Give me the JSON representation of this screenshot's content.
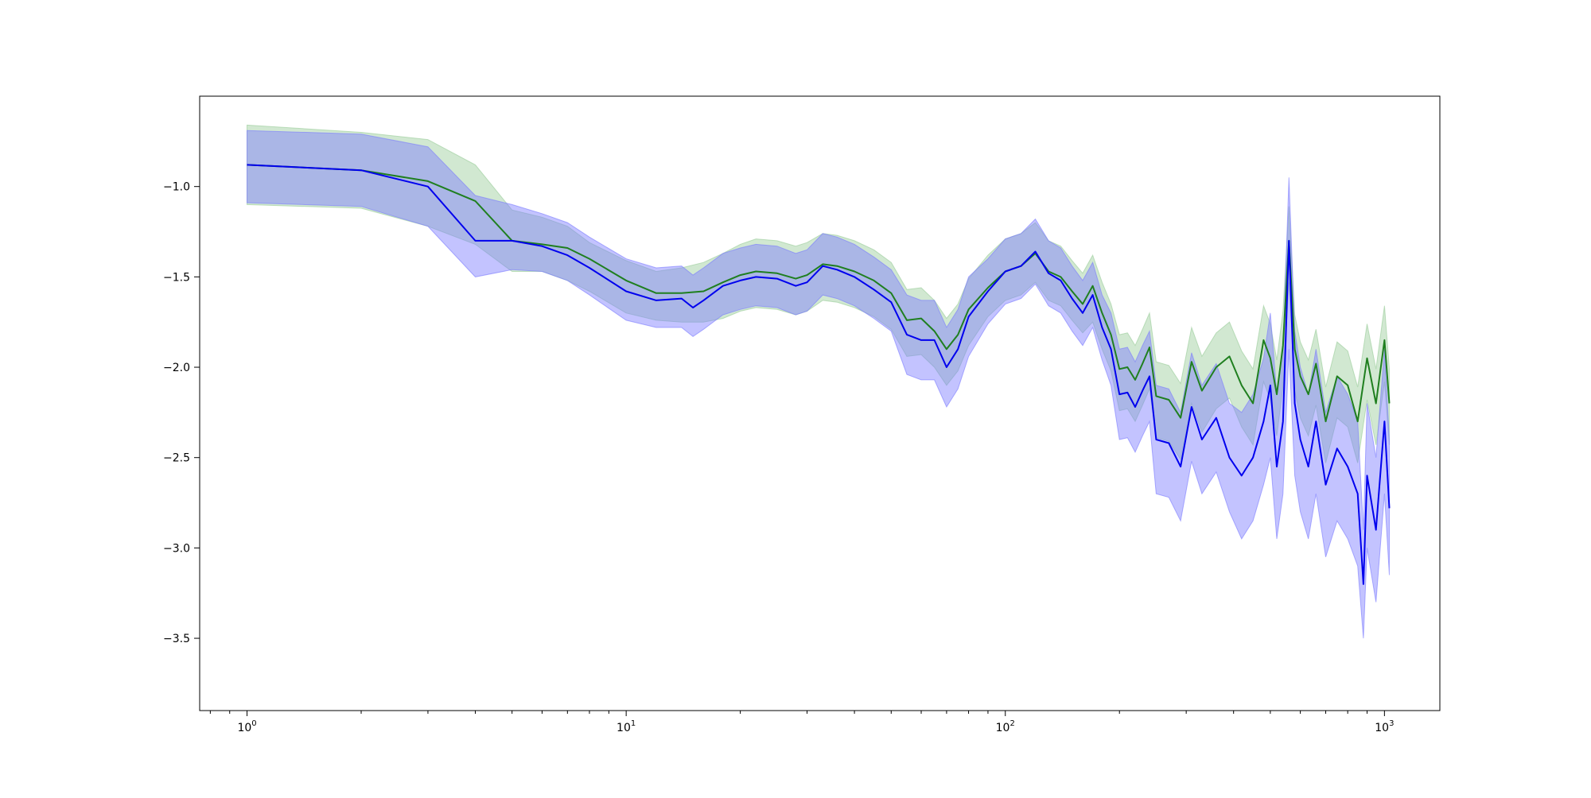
{
  "colors": {
    "green_line": "#1f7f1f",
    "green_band": "#98cc98",
    "blue_line": "#0000ee",
    "blue_band": "#7a7aff",
    "frame": "#000000"
  },
  "chart_data": {
    "type": "line",
    "title": "",
    "xlabel": "",
    "ylabel": "",
    "x_scale": "log",
    "xlim": [
      0.75,
      1400
    ],
    "ylim": [
      -3.9,
      -0.5
    ],
    "grid": false,
    "legend": "none",
    "x_ticks": [
      {
        "value": 1,
        "base": "10",
        "exp": "0"
      },
      {
        "value": 10,
        "base": "10",
        "exp": "1"
      },
      {
        "value": 100,
        "base": "10",
        "exp": "2"
      },
      {
        "value": 1000,
        "base": "10",
        "exp": "3"
      }
    ],
    "y_ticks": [
      {
        "value": -1.0,
        "label": "−1.0"
      },
      {
        "value": -1.5,
        "label": "−1.5"
      },
      {
        "value": -2.0,
        "label": "−2.0"
      },
      {
        "value": -2.5,
        "label": "−2.5"
      },
      {
        "value": -3.0,
        "label": "−3.0"
      },
      {
        "value": -3.5,
        "label": "−3.5"
      }
    ],
    "series": [
      {
        "color": "#1f7f1f",
        "band_color": "#98cc98",
        "x": [
          1,
          2,
          3,
          4,
          5,
          6,
          7,
          8,
          10,
          12,
          14,
          16,
          18,
          20,
          22,
          25,
          28,
          30,
          33,
          36,
          40,
          45,
          50,
          55,
          60,
          65,
          70,
          75,
          80,
          90,
          100,
          110,
          120,
          130,
          140,
          150,
          160,
          170,
          180,
          190,
          200,
          210,
          220,
          230,
          240,
          250,
          270,
          290,
          310,
          330,
          360,
          390,
          420,
          450,
          480,
          500,
          520,
          540,
          560,
          580,
          600,
          630,
          660,
          700,
          750,
          800,
          850,
          900,
          950,
          1000,
          1030
        ],
        "y": [
          -0.88,
          -0.91,
          -0.97,
          -1.08,
          -1.3,
          -1.32,
          -1.34,
          -1.4,
          -1.52,
          -1.59,
          -1.59,
          -1.58,
          -1.53,
          -1.49,
          -1.47,
          -1.48,
          -1.51,
          -1.49,
          -1.43,
          -1.44,
          -1.47,
          -1.52,
          -1.59,
          -1.74,
          -1.73,
          -1.8,
          -1.9,
          -1.82,
          -1.68,
          -1.56,
          -1.47,
          -1.44,
          -1.37,
          -1.47,
          -1.5,
          -1.58,
          -1.65,
          -1.55,
          -1.7,
          -1.82,
          -2.01,
          -2.0,
          -2.07,
          -1.98,
          -1.89,
          -2.16,
          -2.18,
          -2.28,
          -1.97,
          -2.13,
          -2.0,
          -1.94,
          -2.1,
          -2.2,
          -1.85,
          -1.95,
          -2.15,
          -1.88,
          -1.3,
          -1.9,
          -2.05,
          -2.15,
          -1.98,
          -2.3,
          -2.05,
          -2.1,
          -2.3,
          -1.95,
          -2.2,
          -1.85,
          -2.2
        ],
        "lower": [
          -1.1,
          -1.12,
          -1.22,
          -1.32,
          -1.47,
          -1.47,
          -1.52,
          -1.58,
          -1.7,
          -1.74,
          -1.75,
          -1.75,
          -1.73,
          -1.69,
          -1.67,
          -1.68,
          -1.71,
          -1.69,
          -1.63,
          -1.64,
          -1.67,
          -1.72,
          -1.79,
          -1.94,
          -1.93,
          -2.0,
          -2.1,
          -2.02,
          -1.88,
          -1.72,
          -1.63,
          -1.6,
          -1.53,
          -1.63,
          -1.66,
          -1.74,
          -1.81,
          -1.75,
          -1.9,
          -2.02,
          -2.24,
          -2.23,
          -2.3,
          -2.21,
          -2.12,
          -2.39,
          -2.41,
          -2.51,
          -2.2,
          -2.36,
          -2.23,
          -2.17,
          -2.33,
          -2.43,
          -2.08,
          -2.18,
          -2.38,
          -2.11,
          -1.53,
          -2.13,
          -2.28,
          -2.38,
          -2.21,
          -2.53,
          -2.28,
          -2.33,
          -2.53,
          -2.18,
          -2.43,
          -2.08,
          -2.43
        ],
        "upper": [
          -0.66,
          -0.7,
          -0.74,
          -0.88,
          -1.13,
          -1.17,
          -1.22,
          -1.31,
          -1.41,
          -1.47,
          -1.45,
          -1.42,
          -1.37,
          -1.32,
          -1.29,
          -1.3,
          -1.33,
          -1.31,
          -1.26,
          -1.27,
          -1.3,
          -1.35,
          -1.42,
          -1.57,
          -1.56,
          -1.63,
          -1.73,
          -1.65,
          -1.51,
          -1.38,
          -1.29,
          -1.26,
          -1.2,
          -1.3,
          -1.33,
          -1.41,
          -1.48,
          -1.38,
          -1.53,
          -1.65,
          -1.82,
          -1.81,
          -1.88,
          -1.79,
          -1.7,
          -1.97,
          -1.99,
          -2.09,
          -1.78,
          -1.94,
          -1.81,
          -1.75,
          -1.91,
          -2.01,
          -1.66,
          -1.76,
          -1.96,
          -1.69,
          -1.11,
          -1.71,
          -1.86,
          -1.96,
          -1.79,
          -2.11,
          -1.86,
          -1.91,
          -2.11,
          -1.76,
          -2.01,
          -1.66,
          -2.01
        ]
      },
      {
        "color": "#0000ee",
        "band_color": "#7a7aff",
        "x": [
          1,
          2,
          3,
          4,
          5,
          6,
          7,
          8,
          10,
          12,
          14,
          15,
          16,
          18,
          20,
          22,
          25,
          28,
          30,
          33,
          36,
          40,
          45,
          50,
          55,
          60,
          65,
          70,
          75,
          80,
          90,
          100,
          110,
          120,
          130,
          140,
          150,
          160,
          170,
          180,
          190,
          200,
          210,
          220,
          230,
          240,
          250,
          270,
          290,
          310,
          330,
          360,
          390,
          420,
          450,
          480,
          500,
          520,
          540,
          560,
          580,
          600,
          630,
          660,
          700,
          750,
          800,
          850,
          880,
          900,
          950,
          1000,
          1030
        ],
        "y": [
          -0.88,
          -0.91,
          -1.0,
          -1.3,
          -1.3,
          -1.33,
          -1.38,
          -1.45,
          -1.58,
          -1.63,
          -1.62,
          -1.67,
          -1.63,
          -1.55,
          -1.52,
          -1.5,
          -1.51,
          -1.55,
          -1.53,
          -1.44,
          -1.46,
          -1.5,
          -1.57,
          -1.64,
          -1.82,
          -1.85,
          -1.85,
          -2.0,
          -1.9,
          -1.72,
          -1.58,
          -1.47,
          -1.44,
          -1.36,
          -1.48,
          -1.52,
          -1.62,
          -1.7,
          -1.6,
          -1.78,
          -1.9,
          -2.15,
          -2.14,
          -2.22,
          -2.13,
          -2.05,
          -2.4,
          -2.42,
          -2.55,
          -2.22,
          -2.4,
          -2.28,
          -2.5,
          -2.6,
          -2.5,
          -2.3,
          -2.1,
          -2.55,
          -2.3,
          -1.3,
          -2.2,
          -2.4,
          -2.55,
          -2.3,
          -2.65,
          -2.45,
          -2.55,
          -2.7,
          -3.2,
          -2.6,
          -2.9,
          -2.3,
          -2.78
        ],
        "lower": [
          -1.09,
          -1.11,
          -1.22,
          -1.5,
          -1.46,
          -1.47,
          -1.52,
          -1.6,
          -1.74,
          -1.78,
          -1.78,
          -1.83,
          -1.79,
          -1.71,
          -1.68,
          -1.66,
          -1.67,
          -1.71,
          -1.69,
          -1.6,
          -1.62,
          -1.66,
          -1.73,
          -1.8,
          -2.04,
          -2.07,
          -2.07,
          -2.22,
          -2.12,
          -1.94,
          -1.76,
          -1.65,
          -1.62,
          -1.54,
          -1.66,
          -1.7,
          -1.8,
          -1.88,
          -1.78,
          -1.96,
          -2.1,
          -2.4,
          -2.39,
          -2.47,
          -2.38,
          -2.3,
          -2.7,
          -2.72,
          -2.85,
          -2.52,
          -2.7,
          -2.58,
          -2.8,
          -2.95,
          -2.85,
          -2.65,
          -2.5,
          -2.95,
          -2.7,
          -1.9,
          -2.6,
          -2.8,
          -2.95,
          -2.7,
          -3.05,
          -2.85,
          -2.95,
          -3.1,
          -3.5,
          -3.0,
          -3.3,
          -2.7,
          -3.15
        ],
        "upper": [
          -0.69,
          -0.71,
          -0.78,
          -1.05,
          -1.1,
          -1.15,
          -1.2,
          -1.28,
          -1.4,
          -1.45,
          -1.44,
          -1.49,
          -1.45,
          -1.37,
          -1.34,
          -1.32,
          -1.33,
          -1.37,
          -1.35,
          -1.26,
          -1.28,
          -1.32,
          -1.39,
          -1.46,
          -1.6,
          -1.63,
          -1.63,
          -1.78,
          -1.68,
          -1.5,
          -1.4,
          -1.29,
          -1.26,
          -1.18,
          -1.3,
          -1.34,
          -1.44,
          -1.52,
          -1.42,
          -1.6,
          -1.7,
          -1.9,
          -1.89,
          -1.97,
          -1.88,
          -1.8,
          -2.1,
          -2.12,
          -2.25,
          -1.92,
          -2.1,
          -1.98,
          -2.2,
          -2.25,
          -2.15,
          -1.95,
          -1.7,
          -2.15,
          -1.9,
          -0.95,
          -1.8,
          -2.0,
          -2.15,
          -1.9,
          -2.25,
          -2.05,
          -2.15,
          -2.3,
          -2.9,
          -2.2,
          -2.5,
          -1.9,
          -2.4
        ]
      }
    ]
  }
}
